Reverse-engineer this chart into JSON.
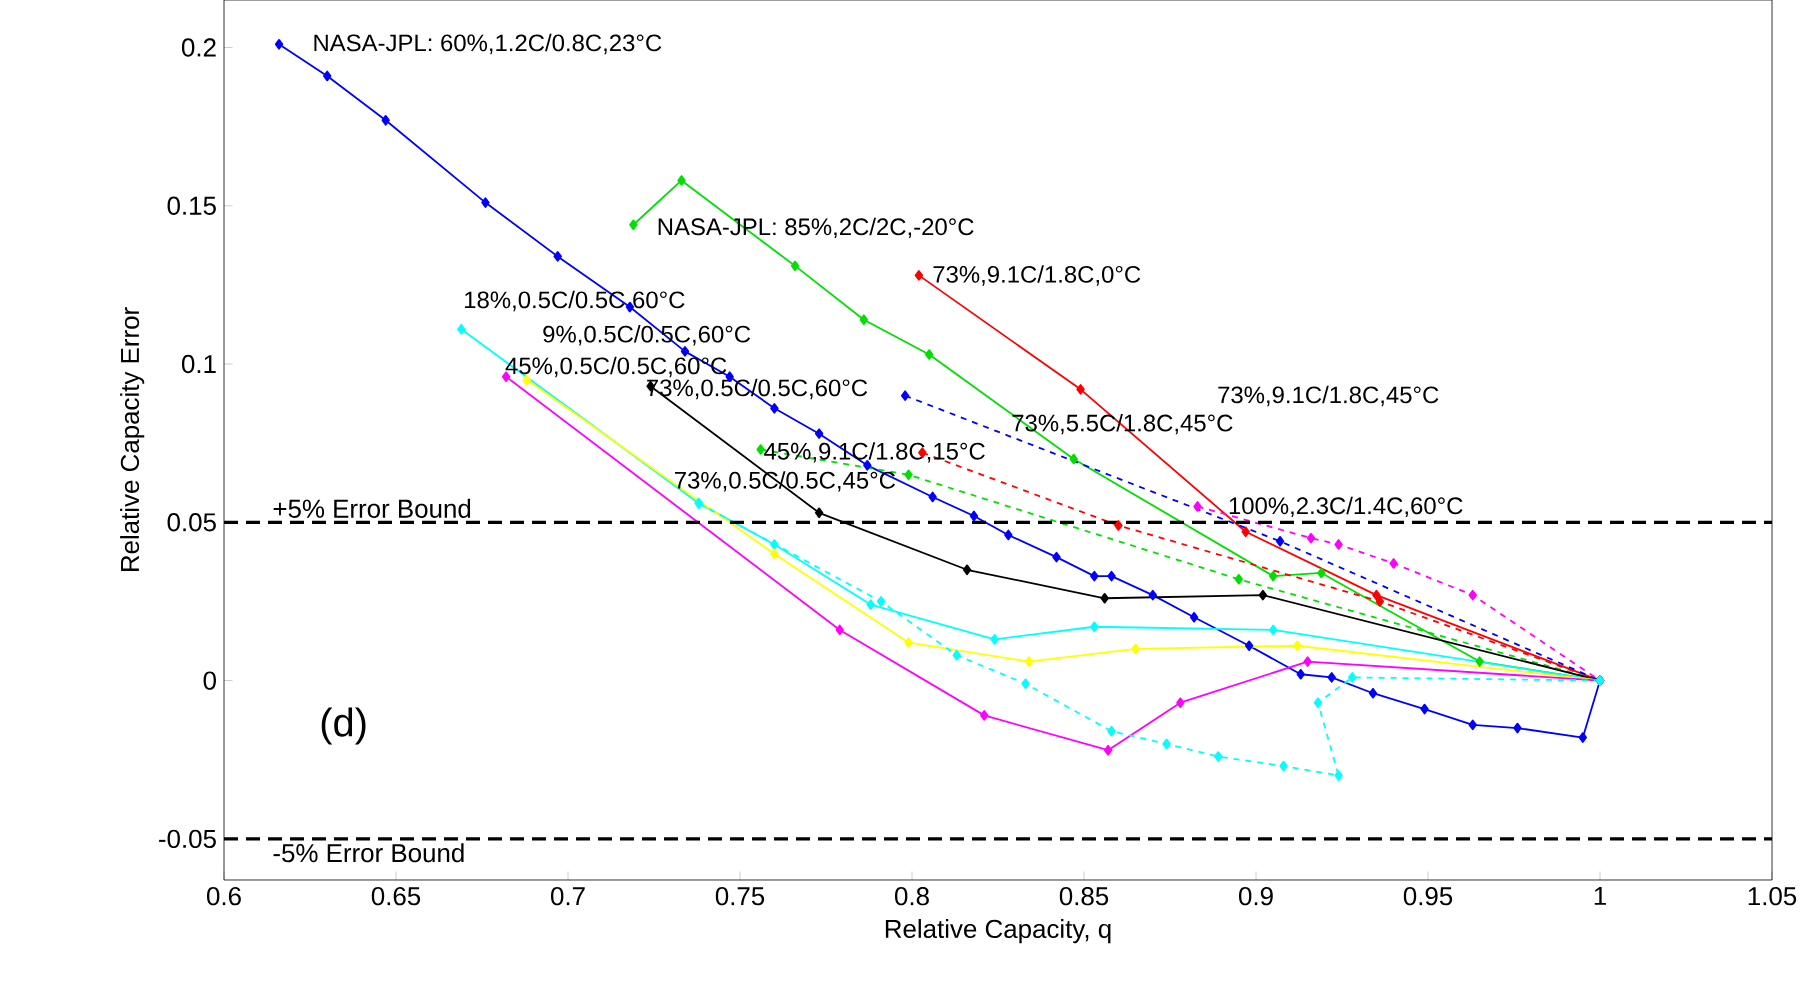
{
  "chart_data": {
    "type": "line",
    "xlabel": "Relative Capacity, q",
    "ylabel": "Relative Capacity Error",
    "xlim": [
      0.6,
      1.05
    ],
    "ylim": [
      -0.063,
      0.215
    ],
    "xticks": [
      0.6,
      0.65,
      0.7,
      0.75,
      0.8,
      0.85,
      0.9,
      0.95,
      1,
      1.05
    ],
    "yticks": [
      -0.05,
      0,
      0.05,
      0.1,
      0.15,
      0.2
    ],
    "grid": false,
    "marker": "diamond",
    "series": [
      {
        "color": "#0000ff",
        "line_style": "solid",
        "x": [
          0.616,
          0.63,
          0.647,
          0.676,
          0.697,
          0.718,
          0.734,
          0.747,
          0.76,
          0.773,
          0.787,
          0.806,
          0.818,
          0.828,
          0.842,
          0.853,
          0.858,
          0.87,
          0.882,
          0.898,
          0.913,
          0.922,
          0.934,
          0.949,
          0.963,
          0.976,
          0.995,
          1.0
        ],
        "values": [
          0.201,
          0.191,
          0.177,
          0.151,
          0.134,
          0.118,
          0.104,
          0.096,
          0.086,
          0.078,
          0.068,
          0.058,
          0.052,
          0.046,
          0.039,
          0.033,
          0.033,
          0.027,
          0.02,
          0.011,
          0.002,
          0.001,
          -0.004,
          -0.009,
          -0.014,
          -0.015,
          -0.018,
          0.0
        ]
      },
      {
        "color": "#00e000",
        "line_style": "solid",
        "x": [
          0.719,
          0.733,
          0.766,
          0.786,
          0.805,
          0.847,
          0.905,
          0.919,
          0.965,
          1.0
        ],
        "values": [
          0.144,
          0.158,
          0.131,
          0.114,
          0.103,
          0.07,
          0.033,
          0.034,
          0.006,
          0.0
        ]
      },
      {
        "color": "#ff0000",
        "line_style": "solid",
        "x": [
          0.802,
          0.849,
          0.897,
          0.935,
          1.0
        ],
        "values": [
          0.128,
          0.092,
          0.047,
          0.027,
          0.0
        ]
      },
      {
        "color": "#ff0000",
        "line_style": "dashed",
        "x": [
          0.803,
          0.86,
          0.936,
          1.0
        ],
        "values": [
          0.072,
          0.049,
          0.025,
          0.0
        ]
      },
      {
        "color": "#00e000",
        "line_style": "dashed",
        "x": [
          0.756,
          0.799,
          0.895,
          1.0
        ],
        "values": [
          0.073,
          0.065,
          0.032,
          0.0
        ]
      },
      {
        "color": "#0000ff",
        "line_style": "dashed",
        "x": [
          0.798,
          0.907,
          1.0
        ],
        "values": [
          0.09,
          0.044,
          0.0
        ]
      },
      {
        "color": "#ff00ff",
        "line_style": "dashed",
        "x": [
          0.883,
          0.916,
          0.924,
          0.94,
          0.963,
          1.0
        ],
        "values": [
          0.055,
          0.045,
          0.043,
          0.037,
          0.027,
          0.0
        ]
      },
      {
        "color": "#000000",
        "line_style": "solid",
        "x": [
          0.724,
          0.773,
          0.816,
          0.856,
          0.902,
          1.0
        ],
        "values": [
          0.093,
          0.053,
          0.035,
          0.026,
          0.027,
          0.0
        ]
      },
      {
        "color": "#00ffff",
        "line_style": "solid",
        "x": [
          0.669,
          0.738,
          0.76,
          0.788,
          0.824,
          0.853,
          0.905,
          1.0
        ],
        "values": [
          0.111,
          0.056,
          0.043,
          0.024,
          0.013,
          0.017,
          0.016,
          0.0
        ]
      },
      {
        "color": "#ffff00",
        "line_style": "solid",
        "x": [
          0.688,
          0.76,
          0.799,
          0.834,
          0.865,
          0.912,
          1.0
        ],
        "values": [
          0.095,
          0.04,
          0.012,
          0.006,
          0.01,
          0.011,
          0.0
        ]
      },
      {
        "color": "#ff00ff",
        "line_style": "solid",
        "x": [
          0.682,
          0.779,
          0.821,
          0.857,
          0.878,
          0.915,
          1.0
        ],
        "values": [
          0.096,
          0.016,
          -0.011,
          -0.022,
          -0.007,
          0.006,
          0.0
        ]
      },
      {
        "color": "#00ffff",
        "line_style": "dashed",
        "x": [
          0.738,
          0.791,
          0.813,
          0.833,
          0.858,
          0.874,
          0.889,
          0.908,
          0.924,
          0.918,
          0.928,
          1.0
        ],
        "values": [
          0.056,
          0.025,
          0.008,
          -0.001,
          -0.016,
          -0.02,
          -0.024,
          -0.027,
          -0.03,
          -0.007,
          0.001,
          0.0
        ]
      }
    ],
    "ref_lines": [
      {
        "axis": "y",
        "value": 0.05,
        "label": "+5% Error Bound",
        "color": "#000000",
        "line_style": "dashed"
      },
      {
        "axis": "y",
        "value": -0.05,
        "label": "-5% Error Bound",
        "color": "#000000",
        "line_style": "dashed"
      }
    ],
    "annotations": [
      "NASA-JPL: 60%,1.2C/0.8C,23°C",
      "NASA-JPL: 85%,2C/2C,-20°C",
      "73%,9.1C/1.8C,0°C",
      "18%,0.5C/0.5C,60°C",
      "9%,0.5C/0.5C,60°C",
      "45%,0.5C/0.5C,60°C",
      "73%,0.5C/0.5C,60°C",
      "73%,9.1C/1.8C,45°C",
      "73%,5.5C/1.8C,45°C",
      "45%,9.1C/1.8C,15°C",
      "73%,0.5C/0.5C,45°C",
      "100%,2.3C/1.4C,60°C",
      "(d)"
    ]
  }
}
